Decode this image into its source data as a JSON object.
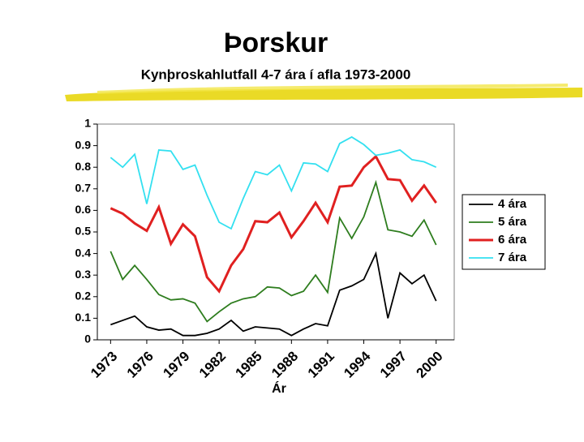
{
  "chart_data": {
    "type": "line",
    "title": "Þorskur",
    "subtitle": "Kynþroskahlutfall 4-7 ára í afla 1973-2000",
    "x_label": "Ár",
    "x": [
      1973,
      1974,
      1975,
      1976,
      1977,
      1978,
      1979,
      1980,
      1981,
      1982,
      1983,
      1984,
      1985,
      1986,
      1987,
      1988,
      1989,
      1990,
      1991,
      1992,
      1993,
      1994,
      1995,
      1996,
      1997,
      1998,
      1999,
      2000
    ],
    "series": [
      {
        "name": "4 ára",
        "color": "#000000",
        "values": [
          0.07,
          0.09,
          0.11,
          0.06,
          0.045,
          0.05,
          0.02,
          0.02,
          0.03,
          0.05,
          0.09,
          0.04,
          0.06,
          0.055,
          0.05,
          0.02,
          0.05,
          0.075,
          0.065,
          0.23,
          0.25,
          0.28,
          0.4,
          0.1,
          0.31,
          0.26,
          0.3,
          0.18
        ]
      },
      {
        "name": "5 ára",
        "color": "#2e7d1e",
        "values": [
          0.41,
          0.28,
          0.345,
          0.28,
          0.21,
          0.185,
          0.19,
          0.17,
          0.085,
          0.13,
          0.17,
          0.19,
          0.2,
          0.245,
          0.24,
          0.205,
          0.225,
          0.3,
          0.22,
          0.565,
          0.47,
          0.57,
          0.73,
          0.51,
          0.5,
          0.48,
          0.555,
          0.44
        ]
      },
      {
        "name": "6 ára",
        "color": "#e02020",
        "values": [
          0.61,
          0.585,
          0.54,
          0.505,
          0.615,
          0.445,
          0.535,
          0.48,
          0.29,
          0.225,
          0.345,
          0.42,
          0.55,
          0.545,
          0.59,
          0.475,
          0.55,
          0.635,
          0.545,
          0.71,
          0.715,
          0.8,
          0.85,
          0.745,
          0.74,
          0.645,
          0.715,
          0.635
        ]
      },
      {
        "name": "7 ára",
        "color": "#33e0f0",
        "values": [
          0.845,
          0.8,
          0.86,
          0.63,
          0.88,
          0.875,
          0.79,
          0.81,
          0.67,
          0.545,
          0.515,
          0.655,
          0.78,
          0.765,
          0.81,
          0.69,
          0.82,
          0.815,
          0.78,
          0.91,
          0.94,
          0.905,
          0.855,
          0.865,
          0.88,
          0.835,
          0.825,
          0.8
        ]
      }
    ],
    "xlim": [
      1971.9,
      2001.5
    ],
    "xticks": [
      1973,
      1976,
      1979,
      1982,
      1985,
      1988,
      1991,
      1994,
      1997,
      2000
    ],
    "ylim": [
      0,
      1
    ],
    "yticks": [
      0,
      0.1,
      0.2,
      0.3,
      0.4,
      0.5,
      0.6,
      0.7,
      0.8,
      0.9,
      1
    ],
    "legend": "right"
  }
}
